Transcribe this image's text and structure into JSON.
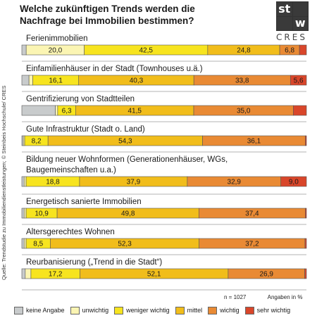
{
  "header": {
    "title_line1": "Welche zukünftigen Trends werden die",
    "title_line2": "Nachfrage bei Immobilien bestimmen?",
    "logo_letters": [
      "st",
      "w"
    ],
    "logo_text": "CRES"
  },
  "source": "Quelle: Trendstudie zu Immobiliendienstleistungen; © Steinbeis Hochschule/ CRES",
  "meta": {
    "n": "n = 1027",
    "unit": "Angaben in %"
  },
  "chart_data": {
    "type": "bar",
    "orientation": "horizontal",
    "stacked": true,
    "categories": [
      [
        "Ferienimmobilien"
      ],
      [
        "Einfamilienhäuser in der Stadt (Townhouses u.ä.)"
      ],
      [
        "Gentrifizierung von Stadtteilen"
      ],
      [
        "Gute Infrastruktur (Stadt o. Land)"
      ],
      [
        "Bildung neuer Wohnformen (Generationenhäuser, WGs,",
        "Baugemeinschaften u.a.)"
      ],
      [
        "Energetisch sanierte Immobilien"
      ],
      [
        "Altersgerechtes Wohnen"
      ],
      [
        "Reurbanisierung („Trend in die Stadt“)"
      ]
    ],
    "series": [
      {
        "name": "keine Angabe",
        "color": "#c8cbcc",
        "values": [
          1.5,
          2.5,
          11.8,
          0.5,
          0.8,
          0.8,
          0.8,
          1.2
        ]
      },
      {
        "name": "unwichtig",
        "color": "#fbf5b3",
        "values": [
          20.0,
          1.3,
          0.8,
          0.5,
          0.7,
          0.7,
          0.7,
          2.0
        ]
      },
      {
        "name": "weniger wichtig",
        "color": "#f7e41f",
        "values": [
          42.5,
          16.1,
          6.3,
          8.2,
          18.8,
          10.9,
          8.5,
          17.2
        ]
      },
      {
        "name": "mittel",
        "color": "#f1bd1b",
        "values": [
          24.8,
          40.3,
          41.5,
          54.3,
          37.9,
          49.8,
          52.3,
          52.1
        ]
      },
      {
        "name": "wichtig",
        "color": "#e98a34",
        "values": [
          6.8,
          33.8,
          35.0,
          36.1,
          32.9,
          37.4,
          37.2,
          26.9
        ]
      },
      {
        "name": "sehr wichtig",
        "color": "#d9462a",
        "values": [
          2.4,
          5.6,
          4.6,
          0.4,
          9.0,
          0.4,
          0.5,
          0.6
        ]
      }
    ],
    "labels": [
      [
        null,
        "20,0",
        "42,5",
        "24,8",
        "6,8",
        null
      ],
      [
        null,
        null,
        "16,1",
        "40,3",
        "33,8",
        "5,6"
      ],
      [
        null,
        null,
        "6,3",
        "41,5",
        "35,0",
        null
      ],
      [
        null,
        null,
        "8,2",
        "54,3",
        "36,1",
        null
      ],
      [
        null,
        null,
        "18,8",
        "37,9",
        "32,9",
        "9,0"
      ],
      [
        null,
        null,
        "10,9",
        "49,8",
        "37,4",
        null
      ],
      [
        null,
        null,
        "8,5",
        "52,3",
        "37,2",
        null
      ],
      [
        null,
        null,
        "17,2",
        "52,1",
        "26,9",
        null
      ]
    ],
    "xlim": [
      0,
      100
    ]
  }
}
